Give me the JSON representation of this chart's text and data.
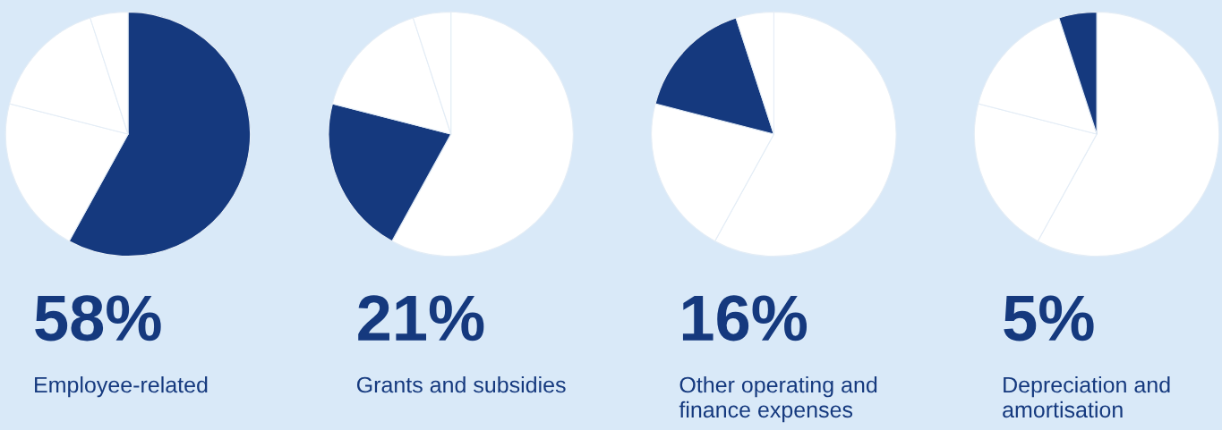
{
  "chart_data": [
    {
      "type": "pie",
      "categories": [
        null,
        null,
        null,
        null
      ],
      "values": [
        58,
        21,
        16,
        5
      ],
      "colors": [
        "#15397e",
        "#ffffff",
        "#ffffff",
        "#ffffff"
      ],
      "annotations": [
        "58%",
        "Employee-related"
      ]
    },
    {
      "type": "pie",
      "categories": [
        null,
        null,
        null,
        null
      ],
      "values": [
        58,
        21,
        16,
        5
      ],
      "colors": [
        "#ffffff",
        "#15397e",
        "#ffffff",
        "#ffffff"
      ],
      "annotations": [
        "21%",
        "Grants and subsidies"
      ]
    },
    {
      "type": "pie",
      "categories": [
        null,
        null,
        null,
        null
      ],
      "values": [
        58,
        21,
        16,
        5
      ],
      "colors": [
        "#ffffff",
        "#ffffff",
        "#15397e",
        "#ffffff"
      ],
      "annotations": [
        "16%",
        "Other operating and\nfinance expenses"
      ]
    },
    {
      "type": "pie",
      "categories": [
        null,
        null,
        null,
        null
      ],
      "values": [
        58,
        21,
        16,
        5
      ],
      "colors": [
        "#ffffff",
        "#ffffff",
        "#ffffff",
        "#15397e"
      ],
      "annotations": [
        "5%",
        "Depreciation and\namortisation"
      ]
    }
  ]
}
